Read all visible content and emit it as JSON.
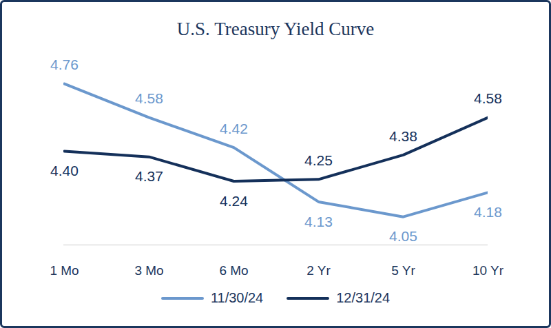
{
  "chart_data": {
    "type": "line",
    "title": "U.S. Treasury Yield Curve",
    "categories": [
      "1 Mo",
      "3 Mo",
      "6 Mo",
      "2 Yr",
      "5 Yr",
      "10 Yr"
    ],
    "series": [
      {
        "name": "11/30/24",
        "color": "#6b98cd",
        "values": [
          4.76,
          4.58,
          4.42,
          4.13,
          4.05,
          4.18
        ],
        "value_labels": [
          "4.76",
          "4.58",
          "4.42",
          "4.13",
          "4.05",
          "4.18"
        ]
      },
      {
        "name": "12/31/24",
        "color": "#14305a",
        "values": [
          4.4,
          4.37,
          4.24,
          4.25,
          4.38,
          4.58
        ],
        "value_labels": [
          "4.40",
          "4.37",
          "4.24",
          "4.25",
          "4.38",
          "4.58"
        ]
      }
    ],
    "ylim": [
      3.9,
      4.9
    ],
    "data_labels": true,
    "tick_labels": "x",
    "legend": "bottom"
  }
}
